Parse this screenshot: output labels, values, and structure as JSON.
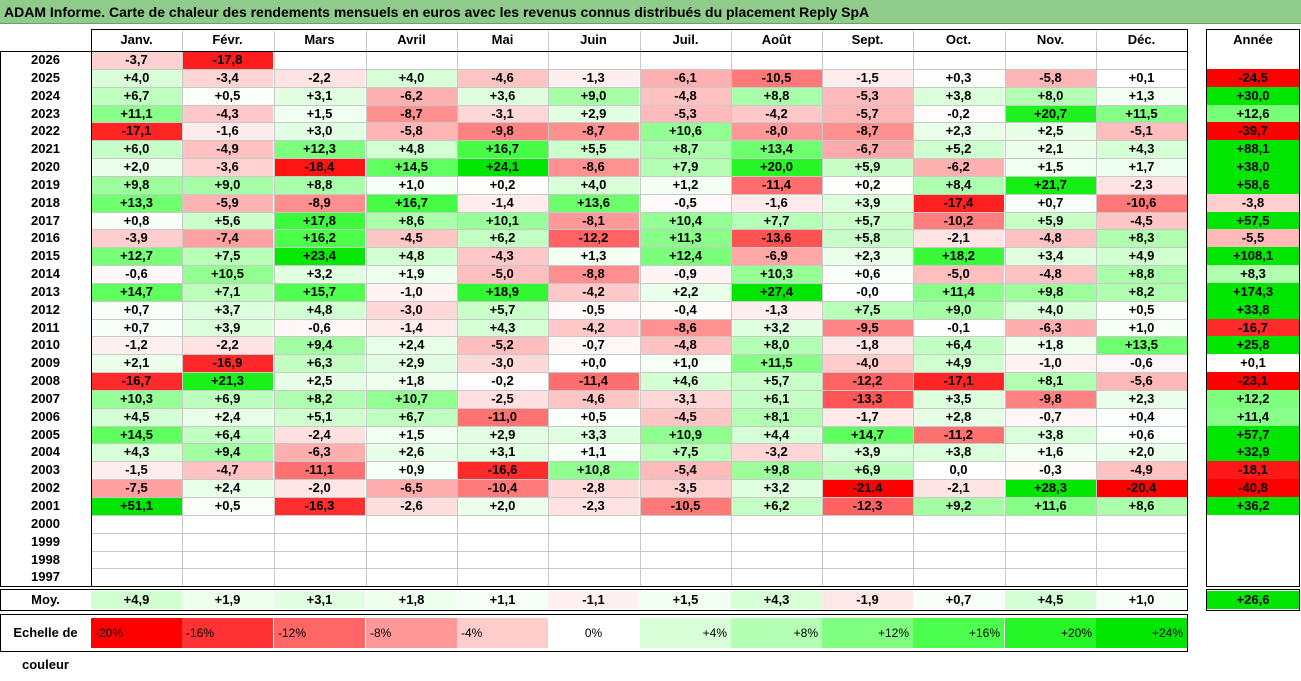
{
  "title": "ADAM Informe. Carte de chaleur des rendements mensuels en euros avec les revenus connus distribués du placement Reply SpA",
  "chart_data": {
    "type": "heatmap",
    "columns": [
      "Janv.",
      "Févr.",
      "Mars",
      "Avril",
      "Mai",
      "Juin",
      "Juil.",
      "Août",
      "Sept.",
      "Oct.",
      "Nov.",
      "Déc."
    ],
    "year_column": "Année",
    "rows": [
      {
        "year": "2026",
        "months": [
          "-3,7",
          "-17,8",
          "",
          "",
          "",
          "",
          "",
          "",
          "",
          "",
          "",
          ""
        ],
        "annual": ""
      },
      {
        "year": "2025",
        "months": [
          "+4,0",
          "-3,4",
          "-2,2",
          "+4,0",
          "-4,6",
          "-1,3",
          "-6,1",
          "-10,5",
          "-1,5",
          "+0,3",
          "-5,8",
          "+0,1"
        ],
        "annual": "-24,5"
      },
      {
        "year": "2024",
        "months": [
          "+6,7",
          "+0,5",
          "+3,1",
          "-6,2",
          "+3,6",
          "+9,0",
          "-4,8",
          "+8,8",
          "-5,3",
          "+3,8",
          "+8,0",
          "+1,3"
        ],
        "annual": "+30,0"
      },
      {
        "year": "2023",
        "months": [
          "+11,1",
          "-4,3",
          "+1,5",
          "-8,7",
          "-3,1",
          "+2,9",
          "-5,3",
          "-4,2",
          "-5,7",
          "-0,2",
          "+20,7",
          "+11,5"
        ],
        "annual": "+12,6"
      },
      {
        "year": "2022",
        "months": [
          "-17,1",
          "-1,6",
          "+3,0",
          "-5,8",
          "-9,8",
          "-8,7",
          "+10,6",
          "-8,0",
          "-8,7",
          "+2,3",
          "+2,5",
          "-5,1"
        ],
        "annual": "-39,7"
      },
      {
        "year": "2021",
        "months": [
          "+6,0",
          "-4,9",
          "+12,3",
          "+4,8",
          "+16,7",
          "+5,5",
          "+8,7",
          "+13,4",
          "-6,7",
          "+5,2",
          "+2,1",
          "+4,3"
        ],
        "annual": "+88,1"
      },
      {
        "year": "2020",
        "months": [
          "+2,0",
          "-3,6",
          "-18,4",
          "+14,5",
          "+24,1",
          "-8,6",
          "+7,9",
          "+20,0",
          "+5,9",
          "-6,2",
          "+1,5",
          "+1,7"
        ],
        "annual": "+38,0"
      },
      {
        "year": "2019",
        "months": [
          "+9,8",
          "+9,0",
          "+8,8",
          "+1,0",
          "+0,2",
          "+4,0",
          "+1,2",
          "-11,4",
          "+0,2",
          "+8,4",
          "+21,7",
          "-2,3"
        ],
        "annual": "+58,6"
      },
      {
        "year": "2018",
        "months": [
          "+13,3",
          "-5,9",
          "-8,9",
          "+16,7",
          "-1,4",
          "+13,6",
          "-0,5",
          "-1,6",
          "+3,9",
          "-17,4",
          "+0,7",
          "-10,6"
        ],
        "annual": "-3,8"
      },
      {
        "year": "2017",
        "months": [
          "+0,8",
          "+5,6",
          "+17,8",
          "+8,6",
          "+10,1",
          "-8,1",
          "+10,4",
          "+7,7",
          "+5,7",
          "-10,2",
          "+5,9",
          "-4,5"
        ],
        "annual": "+57,5"
      },
      {
        "year": "2016",
        "months": [
          "-3,9",
          "-7,4",
          "+16,2",
          "-4,5",
          "+6,2",
          "-12,2",
          "+11,3",
          "-13,6",
          "+5,8",
          "-2,1",
          "-4,8",
          "+8,3"
        ],
        "annual": "-5,5"
      },
      {
        "year": "2015",
        "months": [
          "+12,7",
          "+7,5",
          "+23,4",
          "+4,8",
          "-4,3",
          "+1,3",
          "+12,4",
          "-6,9",
          "+2,3",
          "+18,2",
          "+3,4",
          "+4,9"
        ],
        "annual": "+108,1"
      },
      {
        "year": "2014",
        "months": [
          "-0,6",
          "+10,5",
          "+3,2",
          "+1,9",
          "-5,0",
          "-8,8",
          "-0,9",
          "+10,3",
          "+0,6",
          "-5,0",
          "-4,8",
          "+8,8"
        ],
        "annual": "+8,3"
      },
      {
        "year": "2013",
        "months": [
          "+14,7",
          "+7,1",
          "+15,7",
          "-1,0",
          "+18,9",
          "-4,2",
          "+2,2",
          "+27,4",
          "-0,0",
          "+11,4",
          "+9,8",
          "+8,2"
        ],
        "annual": "+174,3"
      },
      {
        "year": "2012",
        "months": [
          "+0,7",
          "+3,7",
          "+4,8",
          "-3,0",
          "+5,7",
          "-0,5",
          "-0,4",
          "-1,3",
          "+7,5",
          "+9,0",
          "+4,0",
          "+0,5"
        ],
        "annual": "+33,8"
      },
      {
        "year": "2011",
        "months": [
          "+0,7",
          "+3,9",
          "-0,6",
          "-1,4",
          "+4,3",
          "-4,2",
          "-8,6",
          "+3,2",
          "-9,5",
          "-0,1",
          "-6,3",
          "+1,0"
        ],
        "annual": "-16,7"
      },
      {
        "year": "2010",
        "months": [
          "-1,2",
          "-2,2",
          "+9,4",
          "+2,4",
          "-5,2",
          "-0,7",
          "-4,8",
          "+8,0",
          "-1,8",
          "+6,4",
          "+1,8",
          "+13,5"
        ],
        "annual": "+25,8"
      },
      {
        "year": "2009",
        "months": [
          "+2,1",
          "-16,9",
          "+6,3",
          "+2,9",
          "-3,0",
          "+0,0",
          "+1,0",
          "+11,5",
          "-4,0",
          "+4,9",
          "-1,0",
          "-0,6"
        ],
        "annual": "+0,1"
      },
      {
        "year": "2008",
        "months": [
          "-16,7",
          "+21,3",
          "+2,5",
          "+1,8",
          "-0,2",
          "-11,4",
          "+4,6",
          "+5,7",
          "-12,2",
          "-17,1",
          "+8,1",
          "-5,6"
        ],
        "annual": "-23,1"
      },
      {
        "year": "2007",
        "months": [
          "+10,3",
          "+6,9",
          "+8,2",
          "+10,7",
          "-2,5",
          "-4,6",
          "-3,1",
          "+6,1",
          "-13,3",
          "+3,5",
          "-9,8",
          "+2,3"
        ],
        "annual": "+12,2"
      },
      {
        "year": "2006",
        "months": [
          "+4,5",
          "+2,4",
          "+5,1",
          "+6,7",
          "-11,0",
          "+0,5",
          "-4,5",
          "+8,1",
          "-1,7",
          "+2,8",
          "-0,7",
          "+0,4"
        ],
        "annual": "+11,4"
      },
      {
        "year": "2005",
        "months": [
          "+14,5",
          "+6,4",
          "-2,4",
          "+1,5",
          "+2,9",
          "+3,3",
          "+10,9",
          "+4,4",
          "+14,7",
          "-11,2",
          "+3,8",
          "+0,6"
        ],
        "annual": "+57,7"
      },
      {
        "year": "2004",
        "months": [
          "+4,3",
          "+9,4",
          "-6,3",
          "+2,6",
          "+3,1",
          "+1,1",
          "+7,5",
          "-3,2",
          "+3,9",
          "+3,8",
          "+1,6",
          "+2,0"
        ],
        "annual": "+32,9"
      },
      {
        "year": "2003",
        "months": [
          "-1,5",
          "-4,7",
          "-11,1",
          "+0,9",
          "-16,6",
          "+10,8",
          "-5,4",
          "+9,8",
          "+6,9",
          "0,0",
          "-0,3",
          "-4,9"
        ],
        "annual": "-18,1"
      },
      {
        "year": "2002",
        "months": [
          "-7,5",
          "+2,4",
          "-2,0",
          "-6,5",
          "-10,4",
          "-2,8",
          "-3,5",
          "+3,2",
          "-21,4",
          "-2,1",
          "+28,3",
          "-20,4"
        ],
        "annual": "-40,8"
      },
      {
        "year": "2001",
        "months": [
          "+51,1",
          "+0,5",
          "-16,3",
          "-2,6",
          "+2,0",
          "-2,3",
          "-10,5",
          "+6,2",
          "-12,3",
          "+9,2",
          "+11,6",
          "+8,6"
        ],
        "annual": "+36,2"
      },
      {
        "year": "2000",
        "months": [
          "",
          "",
          "",
          "",
          "",
          "",
          "",
          "",
          "",
          "",
          "",
          ""
        ],
        "annual": ""
      },
      {
        "year": "1999",
        "months": [
          "",
          "",
          "",
          "",
          "",
          "",
          "",
          "",
          "",
          "",
          "",
          ""
        ],
        "annual": ""
      },
      {
        "year": "1998",
        "months": [
          "",
          "",
          "",
          "",
          "",
          "",
          "",
          "",
          "",
          "",
          "",
          ""
        ],
        "annual": ""
      },
      {
        "year": "1997",
        "months": [
          "",
          "",
          "",
          "",
          "",
          "",
          "",
          "",
          "",
          "",
          "",
          ""
        ],
        "annual": ""
      }
    ],
    "average": {
      "label": "Moy.",
      "months": [
        "+4,9",
        "+1,9",
        "+3,1",
        "+1,8",
        "+1,1",
        "-1,1",
        "+1,5",
        "+4,3",
        "-1,9",
        "+0,7",
        "+4,5",
        "+1,0"
      ],
      "annual": "+26,6"
    },
    "color_scale": {
      "label": "Echelle de couleur",
      "stops": [
        {
          "label": "-20%",
          "value": -20,
          "color": "#ff0000"
        },
        {
          "label": "-16%",
          "value": -16,
          "color": "#ff3333"
        },
        {
          "label": "-12%",
          "value": -12,
          "color": "#ff6666"
        },
        {
          "label": "-8%",
          "value": -8,
          "color": "#ff9999"
        },
        {
          "label": "-4%",
          "value": -4,
          "color": "#ffcccc"
        },
        {
          "label": "0%",
          "value": 0,
          "color": "#ffffff"
        },
        {
          "label": "+4%",
          "value": 4,
          "color": "#d9ffd9"
        },
        {
          "label": "+8%",
          "value": 8,
          "color": "#b3ffb3"
        },
        {
          "label": "+12%",
          "value": 12,
          "color": "#80ff80"
        },
        {
          "label": "+16%",
          "value": 16,
          "color": "#4dff4d"
        },
        {
          "label": "+20%",
          "value": 20,
          "color": "#26f526"
        },
        {
          "label": "+24%",
          "value": 24,
          "color": "#00e600"
        }
      ]
    }
  }
}
